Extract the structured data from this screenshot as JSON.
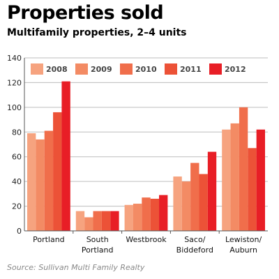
{
  "header": {
    "title": "Properties sold",
    "subtitle": "Multifamily properties, 2–4 units"
  },
  "footer": {
    "source": "Source: Sullivan Multi Family Realty"
  },
  "colors": {
    "series": [
      "#f6a37f",
      "#f38b64",
      "#f06e4b",
      "#ec5237",
      "#e81e26"
    ],
    "grid": "#bdbdbd",
    "axis": "#555555"
  },
  "chart_data": {
    "type": "bar",
    "title": "Properties sold",
    "subtitle": "Multifamily properties, 2–4 units",
    "categories": [
      [
        "Portland"
      ],
      [
        "South",
        "Portland"
      ],
      [
        "Westbrook"
      ],
      [
        "Saco/",
        "Biddeford"
      ],
      [
        "Lewiston/",
        "Auburn"
      ]
    ],
    "series": [
      {
        "name": "2008",
        "values": [
          79,
          16,
          21,
          44,
          82
        ]
      },
      {
        "name": "2009",
        "values": [
          74,
          11,
          22,
          40,
          87
        ]
      },
      {
        "name": "2010",
        "values": [
          81,
          16,
          27,
          55,
          100
        ]
      },
      {
        "name": "2011",
        "values": [
          96,
          16,
          26,
          46,
          67
        ]
      },
      {
        "name": "2012",
        "values": [
          121,
          16,
          29,
          64,
          82
        ]
      }
    ],
    "ylim": [
      0,
      140
    ],
    "yticks": [
      0,
      20,
      40,
      60,
      80,
      100,
      120,
      140
    ],
    "xlabel": "",
    "ylabel": "",
    "grid": true,
    "legend_position": "top"
  }
}
